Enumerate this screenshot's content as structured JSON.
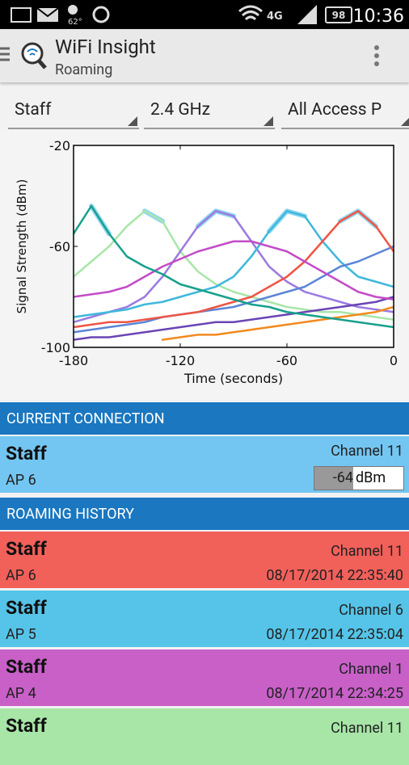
{
  "status_bar": {
    "temperature": "62°",
    "network": "4G",
    "battery": "98",
    "time": "10:36"
  },
  "app_bar": {
    "title": "WiFi Insight",
    "subtitle": "Roaming"
  },
  "filters": [
    "Staff",
    "2.4 GHz",
    "All Access P"
  ],
  "chart_data": {
    "type": "line",
    "ylabel": "Signal Strength (dBm)",
    "xlabel": "Time (seconds)",
    "xlim": [
      -180,
      0
    ],
    "ylim": [
      -100,
      -20
    ],
    "xticks": [
      -180,
      -120,
      -60,
      0
    ],
    "yticks": [
      -100,
      -60,
      -20
    ],
    "x": [
      -180,
      -170,
      -160,
      -150,
      -140,
      -130,
      -120,
      -110,
      -100,
      -90,
      -80,
      -70,
      -60,
      -50,
      -40,
      -30,
      -20,
      -10,
      0
    ],
    "series": [
      {
        "color": "#8fd6f2",
        "width": 6,
        "values": [
          null,
          -44,
          -55,
          null,
          -46,
          -50,
          null,
          -52,
          -46,
          -48,
          null,
          -54,
          -46,
          -48,
          null,
          -50,
          -46,
          -52,
          null
        ]
      },
      {
        "color": "#a8e6a8",
        "width": 2.5,
        "values": [
          -72,
          -66,
          -60,
          -52,
          -46,
          -50,
          -62,
          -70,
          -75,
          -78,
          -80,
          -82,
          -84,
          -85,
          -86,
          -86,
          -87,
          -88,
          -89
        ]
      },
      {
        "color": "#9b7be0",
        "width": 2.5,
        "values": [
          -90,
          -88,
          -86,
          -84,
          -80,
          -72,
          -62,
          -52,
          -46,
          -48,
          -58,
          -68,
          -74,
          -78,
          -80,
          -82,
          -84,
          -85,
          -86
        ]
      },
      {
        "color": "#3fb8dc",
        "width": 2.5,
        "values": [
          -88,
          -87,
          -86,
          -85,
          -83,
          -82,
          -80,
          -78,
          -76,
          -72,
          -64,
          -54,
          -46,
          -48,
          -58,
          -66,
          -72,
          -74,
          -76
        ]
      },
      {
        "color": "#5b86d6",
        "width": 2.5,
        "values": [
          -94,
          -93,
          -92,
          -91,
          -90,
          -88,
          -87,
          -86,
          -85,
          -84,
          -82,
          -80,
          -78,
          -76,
          -72,
          -68,
          -66,
          -63,
          -60
        ]
      },
      {
        "color": "#6a45b5",
        "width": 2.5,
        "values": [
          -97,
          -96,
          -96,
          -95,
          -94,
          -93,
          -92,
          -91,
          -90,
          -90,
          -89,
          -88,
          -87,
          -86,
          -85,
          -84,
          -83,
          -82,
          -80
        ]
      },
      {
        "color": "#f28a1e",
        "width": 2.5,
        "values": [
          null,
          null,
          null,
          null,
          null,
          -97,
          -96,
          -95,
          -95,
          -94,
          -93,
          -92,
          -91,
          -90,
          -89,
          -88,
          -87,
          -86,
          -84
        ]
      },
      {
        "color": "#ef5545",
        "width": 2.5,
        "values": [
          -92,
          -91,
          -90,
          -90,
          -89,
          -88,
          -87,
          -86,
          -84,
          -82,
          -80,
          -76,
          -72,
          -66,
          -58,
          -50,
          -46,
          -52,
          -62
        ]
      },
      {
        "color": "#c24cc8",
        "width": 2.5,
        "values": [
          -80,
          -79,
          -78,
          -76,
          -72,
          -68,
          -65,
          -62,
          -60,
          -58,
          -58,
          -60,
          -62,
          -66,
          -70,
          -74,
          -78,
          -80,
          -81
        ]
      },
      {
        "color": "#17a08c",
        "width": 2.5,
        "values": [
          -55,
          -44,
          -55,
          -64,
          -68,
          -71,
          -75,
          -77,
          -79,
          -81,
          -83,
          -84,
          -86,
          -87,
          -88,
          -89,
          -90,
          -91,
          -92
        ]
      }
    ]
  },
  "current_connection": {
    "header": "CURRENT CONNECTION",
    "ssid": "Staff",
    "ap": "AP 6",
    "channel": "Channel 11",
    "signal": -64,
    "unit": "dBm"
  },
  "roaming_history": {
    "header": "ROAMING HISTORY",
    "items": [
      {
        "ssid": "Staff",
        "ap": "AP 6",
        "channel": "Channel 11",
        "time": "08/17/2014 22:35:40",
        "color": "#f2605a"
      },
      {
        "ssid": "Staff",
        "ap": "AP 5",
        "channel": "Channel 6",
        "time": "08/17/2014 22:35:04",
        "color": "#55c4e8"
      },
      {
        "ssid": "Staff",
        "ap": "AP 4",
        "channel": "Channel 1",
        "time": "08/17/2014 22:34:25",
        "color": "#c860c8"
      },
      {
        "ssid": "Staff",
        "channel": "Channel 11",
        "color": "#a8e6a8"
      }
    ]
  }
}
